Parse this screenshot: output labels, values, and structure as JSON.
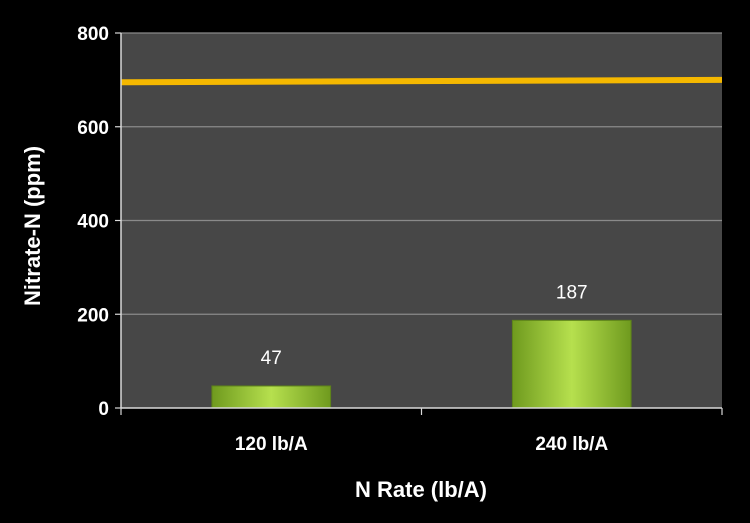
{
  "chart_data": {
    "type": "bar",
    "title": "",
    "xlabel": "N Rate (lb/A)",
    "ylabel": "Nitrate-N (ppm)",
    "categories": [
      "120 lb/A",
      "240 lb/A"
    ],
    "values": [
      47,
      187
    ],
    "data_labels": [
      "47",
      "187"
    ],
    "ylim": [
      0,
      800
    ],
    "yticks": [
      0,
      200,
      400,
      600,
      800
    ],
    "grid": true,
    "legend": "none",
    "reference_line": {
      "y_start": 695,
      "y_end": 700,
      "color": "#f5b800"
    },
    "colors": {
      "plot_background": "#474747",
      "bar": "#9ccc3c",
      "gridline": "#8a8a8a",
      "page_background": "#000000"
    }
  }
}
